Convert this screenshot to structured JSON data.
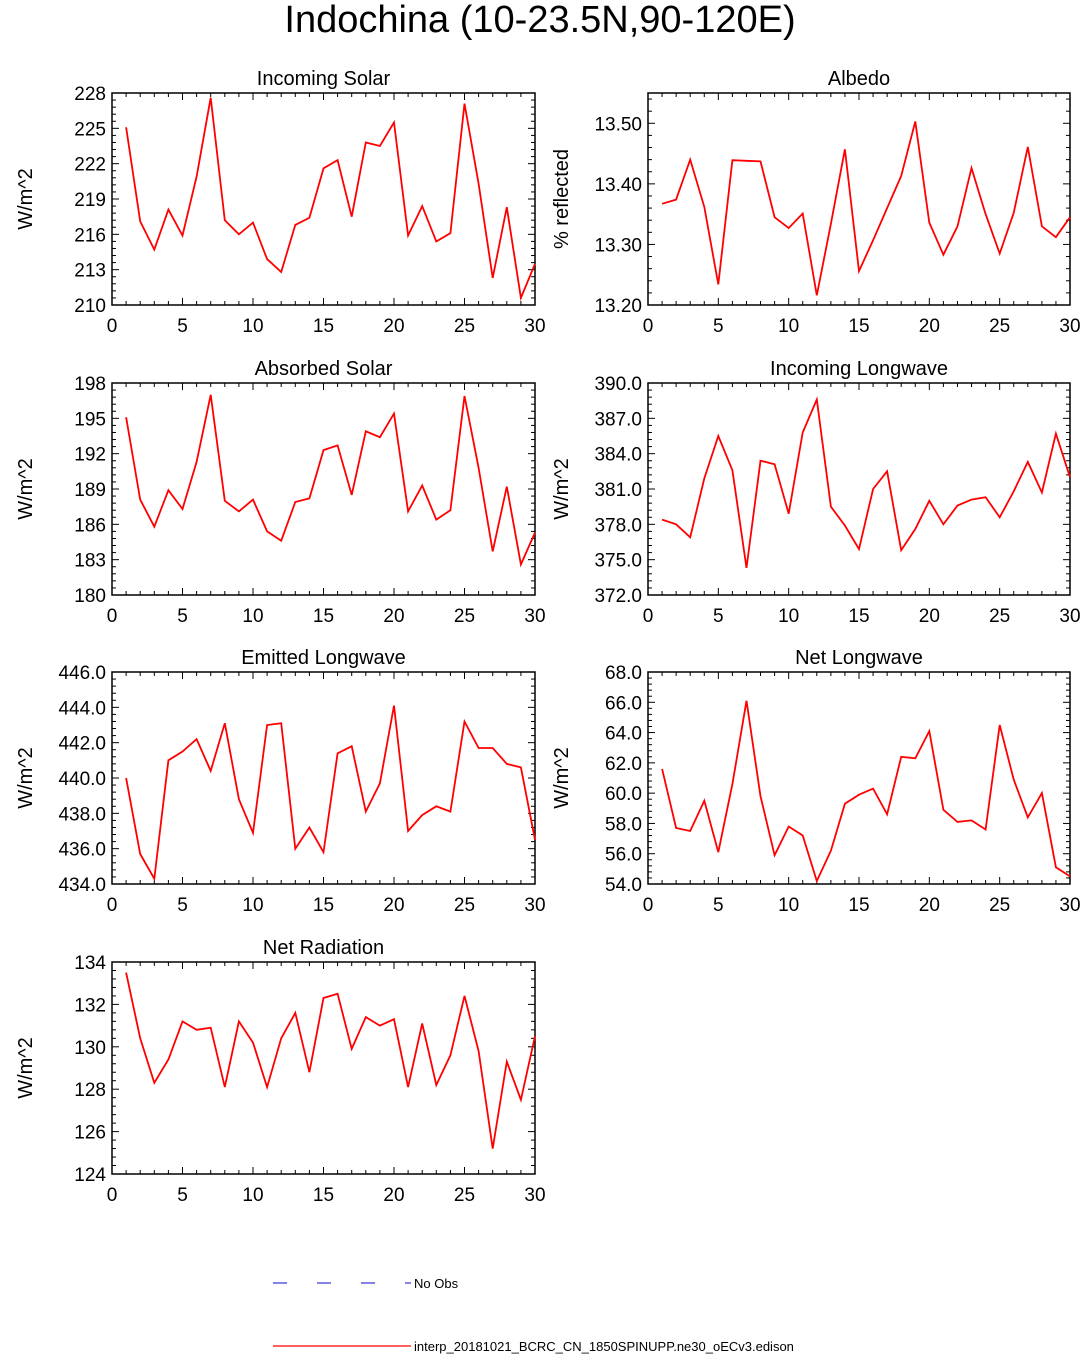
{
  "page_title": "Indochina (10-23.5N,90-120E)",
  "legend": {
    "items": [
      {
        "label": "No Obs",
        "color": "#3b3bd6",
        "style": "dashed"
      },
      {
        "label": "interp_20181021_BCRC_CN_1850SPINUPP.ne30_oECv3.edison",
        "color": "#ff0000",
        "style": "solid"
      }
    ]
  },
  "chart_data": [
    {
      "type": "line",
      "title": "Incoming Solar",
      "ylabel": "W/m^2",
      "xlim": [
        0,
        30
      ],
      "ylim": [
        210,
        228
      ],
      "xticks": [
        0,
        5,
        10,
        15,
        20,
        25,
        30
      ],
      "xtick_labels": [
        "0",
        "5",
        "10",
        "15",
        "20",
        "25",
        "30"
      ],
      "yticks": [
        210,
        213,
        216,
        219,
        222,
        225,
        228
      ],
      "ytick_labels": [
        "210",
        "213",
        "216",
        "219",
        "222",
        "225",
        "228"
      ],
      "series": [
        {
          "name": "interp_20181021_BCRC_CN_1850SPINUPP.ne30_oECv3.edison",
          "color": "#ff0000",
          "x": [
            1,
            2,
            3,
            4,
            5,
            6,
            7,
            8,
            9,
            10,
            11,
            12,
            13,
            14,
            15,
            16,
            17,
            18,
            19,
            20,
            21,
            22,
            23,
            24,
            25,
            26,
            27,
            28,
            29,
            30
          ],
          "values": [
            225.1,
            217.1,
            214.7,
            218.1,
            215.9,
            220.9,
            227.6,
            217.2,
            216.0,
            217.0,
            213.9,
            212.8,
            216.8,
            217.4,
            221.6,
            222.3,
            217.5,
            223.8,
            223.5,
            225.5,
            215.9,
            218.4,
            215.4,
            216.1,
            227.1,
            220.3,
            212.3,
            218.3,
            210.6,
            213.5
          ]
        }
      ]
    },
    {
      "type": "line",
      "title": "Albedo",
      "ylabel": "% reflected",
      "xlim": [
        0,
        30
      ],
      "ylim": [
        13.2,
        13.55
      ],
      "xticks": [
        0,
        5,
        10,
        15,
        20,
        25,
        30
      ],
      "xtick_labels": [
        "0",
        "5",
        "10",
        "15",
        "20",
        "25",
        "30"
      ],
      "yticks": [
        13.2,
        13.3,
        13.4,
        13.5
      ],
      "ytick_labels": [
        "13.20",
        "13.30",
        "13.40",
        "13.50"
      ],
      "series": [
        {
          "name": "interp_20181021_BCRC_CN_1850SPINUPP.ne30_oECv3.edison",
          "color": "#ff0000",
          "x": [
            1,
            2,
            3,
            4,
            5,
            6,
            7,
            8,
            9,
            10,
            11,
            12,
            13,
            14,
            15,
            16,
            17,
            18,
            19,
            20,
            21,
            22,
            23,
            24,
            25,
            26,
            27,
            28,
            29,
            30
          ],
          "values": [
            13.367,
            13.374,
            13.44,
            13.362,
            13.234,
            13.439,
            13.438,
            13.437,
            13.345,
            13.327,
            13.351,
            13.216,
            13.334,
            13.457,
            13.256,
            13.307,
            13.36,
            13.413,
            13.503,
            13.336,
            13.283,
            13.33,
            13.426,
            13.35,
            13.285,
            13.352,
            13.461,
            13.33,
            13.312,
            13.345
          ]
        }
      ]
    },
    {
      "type": "line",
      "title": "Absorbed Solar",
      "ylabel": "W/m^2",
      "xlim": [
        0,
        30
      ],
      "ylim": [
        180,
        198
      ],
      "xticks": [
        0,
        5,
        10,
        15,
        20,
        25,
        30
      ],
      "xtick_labels": [
        "0",
        "5",
        "10",
        "15",
        "20",
        "25",
        "30"
      ],
      "yticks": [
        180,
        183,
        186,
        189,
        192,
        195,
        198
      ],
      "ytick_labels": [
        "180",
        "183",
        "186",
        "189",
        "192",
        "195",
        "198"
      ],
      "series": [
        {
          "name": "interp_20181021_BCRC_CN_1850SPINUPP.ne30_oECv3.edison",
          "color": "#ff0000",
          "x": [
            1,
            2,
            3,
            4,
            5,
            6,
            7,
            8,
            9,
            10,
            11,
            12,
            13,
            14,
            15,
            16,
            17,
            18,
            19,
            20,
            21,
            22,
            23,
            24,
            25,
            26,
            27,
            28,
            29,
            30
          ],
          "values": [
            195.1,
            188.1,
            185.8,
            188.9,
            187.3,
            191.3,
            197.0,
            188.0,
            187.1,
            188.1,
            185.4,
            184.6,
            187.9,
            188.2,
            192.3,
            192.7,
            188.5,
            193.9,
            193.4,
            195.4,
            187.1,
            189.3,
            186.4,
            187.2,
            196.9,
            190.8,
            183.7,
            189.2,
            182.6,
            185.3
          ]
        }
      ]
    },
    {
      "type": "line",
      "title": "Incoming Longwave",
      "ylabel": "W/m^2",
      "xlim": [
        0,
        30
      ],
      "ylim": [
        372,
        390
      ],
      "xticks": [
        0,
        5,
        10,
        15,
        20,
        25,
        30
      ],
      "xtick_labels": [
        "0",
        "5",
        "10",
        "15",
        "20",
        "25",
        "30"
      ],
      "yticks": [
        372,
        375,
        378,
        381,
        384,
        387,
        390
      ],
      "ytick_labels": [
        "372.0",
        "375.0",
        "378.0",
        "381.0",
        "384.0",
        "387.0",
        "390.0"
      ],
      "series": [
        {
          "name": "interp_20181021_BCRC_CN_1850SPINUPP.ne30_oECv3.edison",
          "color": "#ff0000",
          "x": [
            1,
            2,
            3,
            4,
            5,
            6,
            7,
            8,
            9,
            10,
            11,
            12,
            13,
            14,
            15,
            16,
            17,
            18,
            19,
            20,
            21,
            22,
            23,
            24,
            25,
            26,
            27,
            28,
            29,
            30
          ],
          "values": [
            378.4,
            378.0,
            376.9,
            381.9,
            385.5,
            382.6,
            374.3,
            383.4,
            383.1,
            378.9,
            385.8,
            388.6,
            379.5,
            377.9,
            375.9,
            381.0,
            382.5,
            375.8,
            377.6,
            380.0,
            378.0,
            379.6,
            380.1,
            380.3,
            378.6,
            380.8,
            383.3,
            380.7,
            385.7,
            382.0
          ]
        }
      ]
    },
    {
      "type": "line",
      "title": "Emitted Longwave",
      "ylabel": "W/m^2",
      "xlim": [
        0,
        30
      ],
      "ylim": [
        434,
        446
      ],
      "xticks": [
        0,
        5,
        10,
        15,
        20,
        25,
        30
      ],
      "xtick_labels": [
        "0",
        "5",
        "10",
        "15",
        "20",
        "25",
        "30"
      ],
      "yticks": [
        434,
        436,
        438,
        440,
        442,
        444,
        446
      ],
      "ytick_labels": [
        "434.0",
        "436.0",
        "438.0",
        "440.0",
        "442.0",
        "444.0",
        "446.0"
      ],
      "series": [
        {
          "name": "interp_20181021_BCRC_CN_1850SPINUPP.ne30_oECv3.edison",
          "color": "#ff0000",
          "x": [
            1,
            2,
            3,
            4,
            5,
            6,
            7,
            8,
            9,
            10,
            11,
            12,
            13,
            14,
            15,
            16,
            17,
            18,
            19,
            20,
            21,
            22,
            23,
            24,
            25,
            26,
            27,
            28,
            29,
            30
          ],
          "values": [
            440.0,
            435.7,
            434.3,
            441.0,
            441.5,
            442.2,
            440.4,
            443.1,
            438.8,
            436.9,
            443.0,
            443.1,
            436.0,
            437.2,
            435.8,
            441.4,
            441.8,
            438.1,
            439.7,
            444.1,
            437.0,
            437.9,
            438.4,
            438.1,
            443.2,
            441.7,
            441.7,
            440.8,
            440.6,
            436.5
          ]
        }
      ]
    },
    {
      "type": "line",
      "title": "Net Longwave",
      "ylabel": "W/m^2",
      "xlim": [
        0,
        30
      ],
      "ylim": [
        54,
        68
      ],
      "xticks": [
        0,
        5,
        10,
        15,
        20,
        25,
        30
      ],
      "xtick_labels": [
        "0",
        "5",
        "10",
        "15",
        "20",
        "25",
        "30"
      ],
      "yticks": [
        54,
        56,
        58,
        60,
        62,
        64,
        66,
        68
      ],
      "ytick_labels": [
        "54.0",
        "56.0",
        "58.0",
        "60.0",
        "62.0",
        "64.0",
        "66.0",
        "68.0"
      ],
      "series": [
        {
          "name": "interp_20181021_BCRC_CN_1850SPINUPP.ne30_oECv3.edison",
          "color": "#ff0000",
          "x": [
            1,
            2,
            3,
            4,
            5,
            6,
            7,
            8,
            9,
            10,
            11,
            12,
            13,
            14,
            15,
            16,
            17,
            18,
            19,
            20,
            21,
            22,
            23,
            24,
            25,
            26,
            27,
            28,
            29,
            30
          ],
          "values": [
            61.6,
            57.7,
            57.5,
            59.5,
            56.1,
            60.6,
            66.1,
            59.8,
            55.9,
            57.8,
            57.2,
            54.2,
            56.2,
            59.3,
            59.9,
            60.3,
            58.6,
            62.4,
            62.3,
            64.1,
            58.9,
            58.1,
            58.2,
            57.6,
            64.5,
            60.9,
            58.4,
            60.0,
            55.1,
            54.5
          ]
        }
      ]
    },
    {
      "type": "line",
      "title": "Net Radiation",
      "ylabel": "W/m^2",
      "xlim": [
        0,
        30
      ],
      "ylim": [
        124,
        134
      ],
      "xticks": [
        0,
        5,
        10,
        15,
        20,
        25,
        30
      ],
      "xtick_labels": [
        "0",
        "5",
        "10",
        "15",
        "20",
        "25",
        "30"
      ],
      "yticks": [
        124,
        126,
        128,
        130,
        132,
        134
      ],
      "ytick_labels": [
        "124",
        "126",
        "128",
        "130",
        "132",
        "134"
      ],
      "series": [
        {
          "name": "interp_20181021_BCRC_CN_1850SPINUPP.ne30_oECv3.edison",
          "color": "#ff0000",
          "x": [
            1,
            2,
            3,
            4,
            5,
            6,
            7,
            8,
            9,
            10,
            11,
            12,
            13,
            14,
            15,
            16,
            17,
            18,
            19,
            20,
            21,
            22,
            23,
            24,
            25,
            26,
            27,
            28,
            29,
            30
          ],
          "values": [
            133.5,
            130.4,
            128.3,
            129.4,
            131.2,
            130.8,
            130.9,
            128.1,
            131.2,
            130.2,
            128.1,
            130.4,
            131.6,
            128.8,
            132.3,
            132.5,
            129.9,
            131.4,
            131.0,
            131.3,
            128.1,
            131.1,
            128.2,
            129.6,
            132.4,
            129.8,
            125.2,
            129.3,
            127.5,
            130.5
          ]
        }
      ]
    }
  ]
}
